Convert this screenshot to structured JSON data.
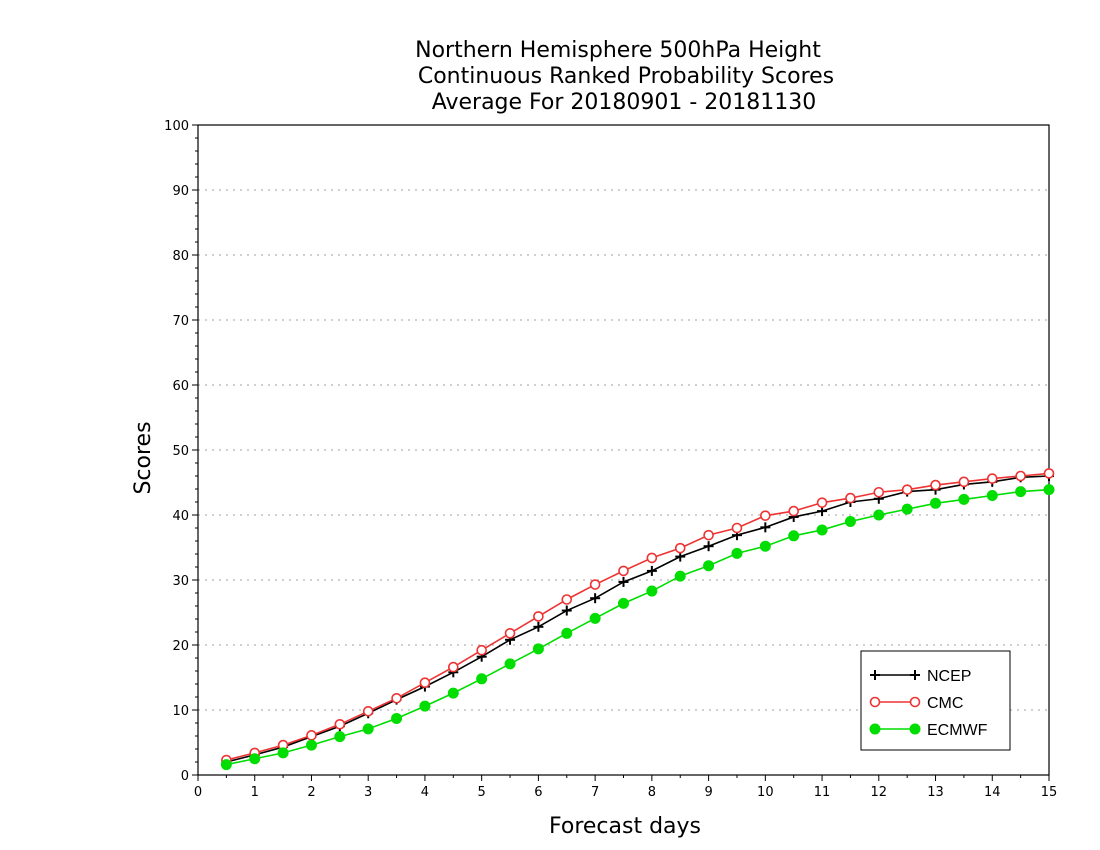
{
  "colors": {
    "ncep": "#000000",
    "cmc": "#ee3333",
    "ecmwf": "#00dd00",
    "grid": "#a0a0a0"
  },
  "chart_data": {
    "type": "line",
    "title": [
      "Northern Hemisphere 500hPa Height",
      "Continuous Ranked Probability Scores",
      "Average For 20180901 - 20181130"
    ],
    "xlabel": "Forecast days",
    "ylabel": "Scores",
    "xlim": [
      0,
      15
    ],
    "ylim": [
      0,
      100
    ],
    "xticks": [
      "0",
      "1",
      "2",
      "3",
      "4",
      "5",
      "6",
      "7",
      "8",
      "9",
      "10",
      "11",
      "12",
      "13",
      "14",
      "15"
    ],
    "yticks": [
      "0",
      "10",
      "20",
      "30",
      "40",
      "50",
      "60",
      "70",
      "80",
      "90",
      "100"
    ],
    "grid": "horizontal dotted",
    "legend_position": "bottom-right",
    "x": [
      0.5,
      1,
      1.5,
      2,
      2.5,
      3,
      3.5,
      4,
      4.5,
      5,
      5.5,
      6,
      6.5,
      7,
      7.5,
      8,
      8.5,
      9,
      9.5,
      10,
      10.5,
      11,
      11.5,
      12,
      12.5,
      13,
      13.5,
      14,
      14.5,
      15
    ],
    "series": [
      {
        "name": "NCEP",
        "marker": "plus",
        "values": [
          2.0,
          3.1,
          4.3,
          5.9,
          7.5,
          9.5,
          11.6,
          13.6,
          15.8,
          18.2,
          20.8,
          22.8,
          25.3,
          27.2,
          29.7,
          31.4,
          33.6,
          35.2,
          36.9,
          38.1,
          39.7,
          40.6,
          42.0,
          42.5,
          43.6,
          43.9,
          44.7,
          45.1,
          45.8,
          46.0
        ]
      },
      {
        "name": "CMC",
        "marker": "open-circle",
        "values": [
          2.3,
          3.4,
          4.6,
          6.1,
          7.8,
          9.8,
          11.8,
          14.2,
          16.6,
          19.2,
          21.8,
          24.4,
          27.0,
          29.3,
          31.4,
          33.4,
          34.9,
          36.9,
          38.0,
          39.9,
          40.6,
          41.9,
          42.6,
          43.5,
          43.9,
          44.6,
          45.1,
          45.6,
          46.0,
          46.4
        ]
      },
      {
        "name": "ECMWF",
        "marker": "filled-circle",
        "values": [
          1.6,
          2.5,
          3.4,
          4.6,
          5.9,
          7.1,
          8.7,
          10.6,
          12.6,
          14.8,
          17.1,
          19.4,
          21.8,
          24.1,
          26.4,
          28.3,
          30.6,
          32.2,
          34.1,
          35.2,
          36.8,
          37.7,
          39.0,
          40.0,
          40.9,
          41.8,
          42.4,
          43.0,
          43.6,
          43.9
        ]
      }
    ]
  }
}
